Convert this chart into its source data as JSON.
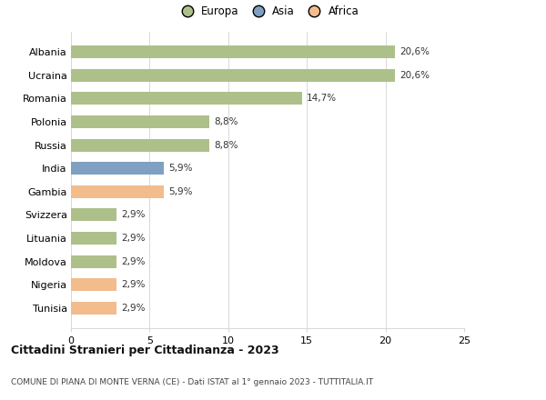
{
  "categories": [
    "Tunisia",
    "Nigeria",
    "Moldova",
    "Lituania",
    "Svizzera",
    "Gambia",
    "India",
    "Russia",
    "Polonia",
    "Romania",
    "Ucraina",
    "Albania"
  ],
  "values": [
    2.9,
    2.9,
    2.9,
    2.9,
    2.9,
    5.9,
    5.9,
    8.8,
    8.8,
    14.7,
    20.6,
    20.6
  ],
  "labels": [
    "2,9%",
    "2,9%",
    "2,9%",
    "2,9%",
    "2,9%",
    "5,9%",
    "5,9%",
    "8,8%",
    "8,8%",
    "14,7%",
    "20,6%",
    "20,6%"
  ],
  "colors": [
    "#f2bc8d",
    "#f2bc8d",
    "#adc08a",
    "#adc08a",
    "#adc08a",
    "#f2bc8d",
    "#7fa0c0",
    "#adc08a",
    "#adc08a",
    "#adc08a",
    "#adc08a",
    "#adc08a"
  ],
  "legend_labels": [
    "Europa",
    "Asia",
    "Africa"
  ],
  "legend_colors": [
    "#adc08a",
    "#7fa0c0",
    "#f2bc8d"
  ],
  "title_bold": "Cittadini Stranieri per Cittadinanza - 2023",
  "subtitle": "COMUNE DI PIANA DI MONTE VERNA (CE) - Dati ISTAT al 1° gennaio 2023 - TUTTITALIA.IT",
  "xlim": [
    0,
    25
  ],
  "xticks": [
    0,
    5,
    10,
    15,
    20,
    25
  ],
  "background_color": "#ffffff",
  "grid_color": "#d8d8d8"
}
